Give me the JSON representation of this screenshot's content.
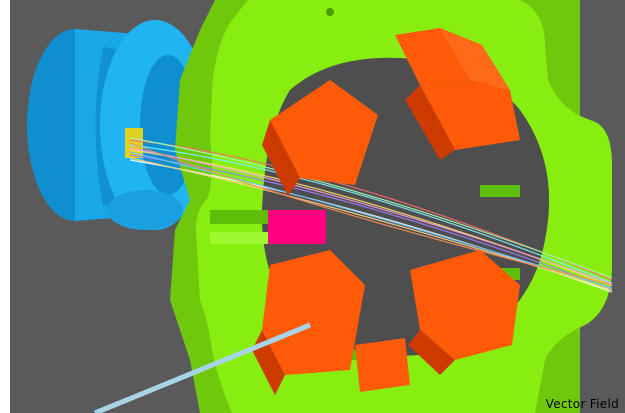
{
  "viewport": {
    "status_label": "Vector Field",
    "background_color": "#5a5a5a",
    "objects": {
      "beam_pipe_color": "#18a8e8",
      "yoke_color": "#88ee10",
      "pole_color": "#ff5a08",
      "pole_shadow_color": "#cc3a00",
      "target_color": "#ff0080",
      "marker_color": "#e0d020",
      "probe_color": "#a8d4e8"
    },
    "icons": [
      "beam-pipe-icon",
      "quadrupole-magnet-icon",
      "field-line-bundle-icon",
      "probe-line-icon"
    ]
  }
}
